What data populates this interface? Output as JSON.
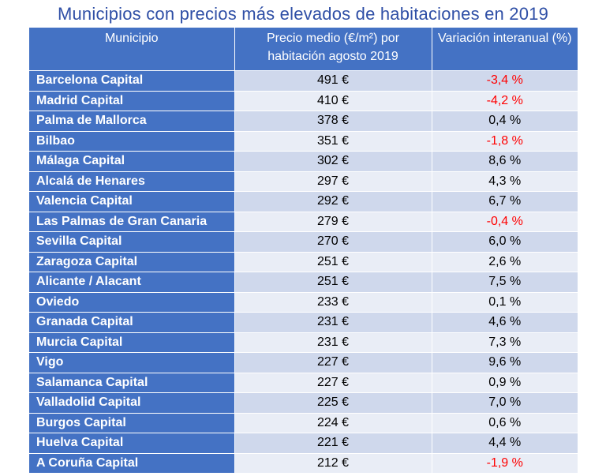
{
  "title": "Municipios con precios más elevados de habitaciones en 2019",
  "colors": {
    "header_bg": "#4472c4",
    "row_odd": "#cfd8ec",
    "row_even": "#e9edf6",
    "title": "#2f4fa6",
    "negative": "#ff0000"
  },
  "table": {
    "headers": [
      "Municipio",
      "Precio medio (€/m²) por habitación agosto 2019",
      "Variación interanual (%)"
    ],
    "rows": [
      {
        "municipio": "Barcelona Capital",
        "precio": "491 €",
        "variacion": "-3,4 %"
      },
      {
        "municipio": "Madrid Capital",
        "precio": "410 €",
        "variacion": "-4,2 %"
      },
      {
        "municipio": "Palma de Mallorca",
        "precio": "378 €",
        "variacion": "0,4 %"
      },
      {
        "municipio": "Bilbao",
        "precio": "351 €",
        "variacion": "-1,8 %"
      },
      {
        "municipio": "Málaga Capital",
        "precio": "302 €",
        "variacion": "8,6 %"
      },
      {
        "municipio": "Alcalá de Henares",
        "precio": "297 €",
        "variacion": "4,3 %"
      },
      {
        "municipio": "Valencia Capital",
        "precio": "292 €",
        "variacion": "6,7 %"
      },
      {
        "municipio": "Las Palmas de Gran Canaria",
        "precio": "279 €",
        "variacion": "-0,4 %"
      },
      {
        "municipio": "Sevilla Capital",
        "precio": "270 €",
        "variacion": "6,0 %"
      },
      {
        "municipio": "Zaragoza Capital",
        "precio": "251 €",
        "variacion": "2,6 %"
      },
      {
        "municipio": "Alicante / Alacant",
        "precio": "251 €",
        "variacion": "7,5 %"
      },
      {
        "municipio": "Oviedo",
        "precio": "233 €",
        "variacion": "0,1 %"
      },
      {
        "municipio": "Granada Capital",
        "precio": "231 €",
        "variacion": "4,6 %"
      },
      {
        "municipio": "Murcia Capital",
        "precio": "231 €",
        "variacion": "7,3 %"
      },
      {
        "municipio": "Vigo",
        "precio": "227 €",
        "variacion": "9,6 %"
      },
      {
        "municipio": "Salamanca Capital",
        "precio": "227 €",
        "variacion": "0,9 %"
      },
      {
        "municipio": "Valladolid Capital",
        "precio": "225 €",
        "variacion": "7,0 %"
      },
      {
        "municipio": "Burgos Capital",
        "precio": "224 €",
        "variacion": "0,6 %"
      },
      {
        "municipio": "Huelva Capital",
        "precio": "221 €",
        "variacion": "4,4 %"
      },
      {
        "municipio": "A Coruña Capital",
        "precio": "212 €",
        "variacion": "-1,9 %"
      }
    ]
  }
}
